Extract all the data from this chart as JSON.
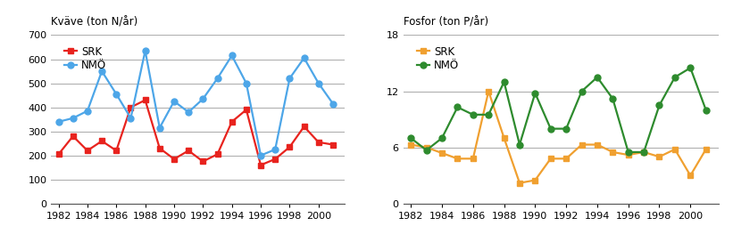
{
  "years": [
    1982,
    1983,
    1984,
    1985,
    1986,
    1987,
    1988,
    1989,
    1990,
    1991,
    1992,
    1993,
    1994,
    1995,
    1996,
    1997,
    1998,
    1999,
    2000,
    2001
  ],
  "kvaeve_srk": [
    205,
    280,
    220,
    260,
    220,
    400,
    430,
    230,
    185,
    220,
    175,
    205,
    340,
    390,
    160,
    185,
    235,
    320,
    255,
    245
  ],
  "kvaeve_nmo": [
    340,
    355,
    385,
    550,
    455,
    355,
    635,
    315,
    425,
    380,
    435,
    520,
    615,
    500,
    200,
    225,
    520,
    605,
    500,
    415
  ],
  "fosfor_srk": [
    6.3,
    6.0,
    5.4,
    4.8,
    4.8,
    12.0,
    7.0,
    2.2,
    2.5,
    4.8,
    4.8,
    6.3,
    6.3,
    5.5,
    5.2,
    5.5,
    5.0,
    5.8,
    3.0,
    5.8
  ],
  "fosfor_nmo": [
    7.0,
    5.7,
    7.0,
    10.3,
    9.5,
    9.5,
    13.0,
    6.3,
    11.8,
    8.0,
    8.0,
    12.0,
    13.5,
    11.2,
    5.5,
    5.5,
    10.5,
    13.5,
    14.5,
    10.0
  ],
  "kvaeve_title": "Kväve (ton N/år)",
  "fosfor_title": "Fosfor (ton P/år)",
  "kvaeve_ylim": [
    0,
    700
  ],
  "fosfor_ylim": [
    0,
    18
  ],
  "kvaeve_yticks": [
    0,
    100,
    200,
    300,
    400,
    500,
    600,
    700
  ],
  "fosfor_yticks": [
    0,
    6,
    12,
    18
  ],
  "srk_color_kvaeve": "#e8231e",
  "nmo_color_kvaeve": "#4da6e8",
  "srk_color_fosfor": "#f0a030",
  "nmo_color_fosfor": "#2e8b2e",
  "legend_srk": "SRK",
  "legend_nmo": "NMÖ",
  "xlim": [
    1981.5,
    2001.8
  ],
  "xticks": [
    1982,
    1984,
    1986,
    1988,
    1990,
    1992,
    1994,
    1996,
    1998,
    2000
  ],
  "grid_color": "#b0b0b0",
  "title_fontsize": 8.5,
  "tick_fontsize": 8,
  "legend_fontsize": 8.5,
  "marker_size": 5,
  "line_width": 1.6
}
